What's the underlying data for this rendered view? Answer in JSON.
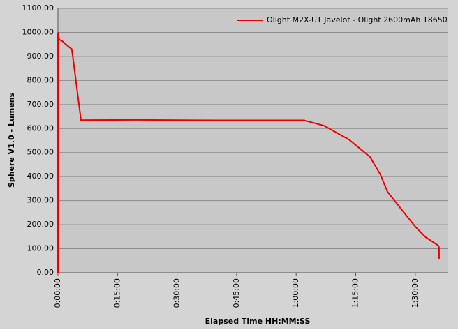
{
  "chart_data": {
    "type": "line",
    "x_label": "Elapsed Time HH:MM:SS",
    "y_label": "Sphere V1.0 - Lumens",
    "legend": "top-right",
    "grid": true,
    "xlim": [
      0,
      98.3
    ],
    "xticks": [
      {
        "value": 0,
        "label": "0:00:00"
      },
      {
        "value": 15,
        "label": "0:15:00"
      },
      {
        "value": 30,
        "label": "0:30:00"
      },
      {
        "value": 45,
        "label": "0:45:00"
      },
      {
        "value": 60,
        "label": "1:00:00"
      },
      {
        "value": 75,
        "label": "1:15:00"
      },
      {
        "value": 90,
        "label": "1:30:00"
      }
    ],
    "ylim": [
      0,
      1100
    ],
    "yticks": [
      {
        "value": 0,
        "label": "0.00"
      },
      {
        "value": 100,
        "label": "100.00"
      },
      {
        "value": 200,
        "label": "200.00"
      },
      {
        "value": 300,
        "label": "300.00"
      },
      {
        "value": 400,
        "label": "400.00"
      },
      {
        "value": 500,
        "label": "500.00"
      },
      {
        "value": 600,
        "label": "600.00"
      },
      {
        "value": 700,
        "label": "700.00"
      },
      {
        "value": 800,
        "label": "800.00"
      },
      {
        "value": 900,
        "label": "900.00"
      },
      {
        "value": 1000,
        "label": "1000.00"
      },
      {
        "value": 1100,
        "label": "1100.00"
      }
    ],
    "x": [
      0,
      0,
      0.3,
      1,
      2,
      3.5,
      5.8,
      20,
      40,
      62,
      67,
      73.3,
      78.6,
      81.2,
      83,
      86.5,
      90,
      92.6,
      95.8,
      96,
      96
    ],
    "series": [
      {
        "name": "Olight M2X-UT Javelot - Olight 2600mAh 18650",
        "color": "#ee0000",
        "values": [
          0,
          1000,
          970,
          965,
          950,
          930,
          635,
          636,
          634,
          634,
          612,
          554,
          482,
          409,
          337,
          264,
          192,
          148,
          113,
          105,
          55
        ]
      }
    ]
  }
}
